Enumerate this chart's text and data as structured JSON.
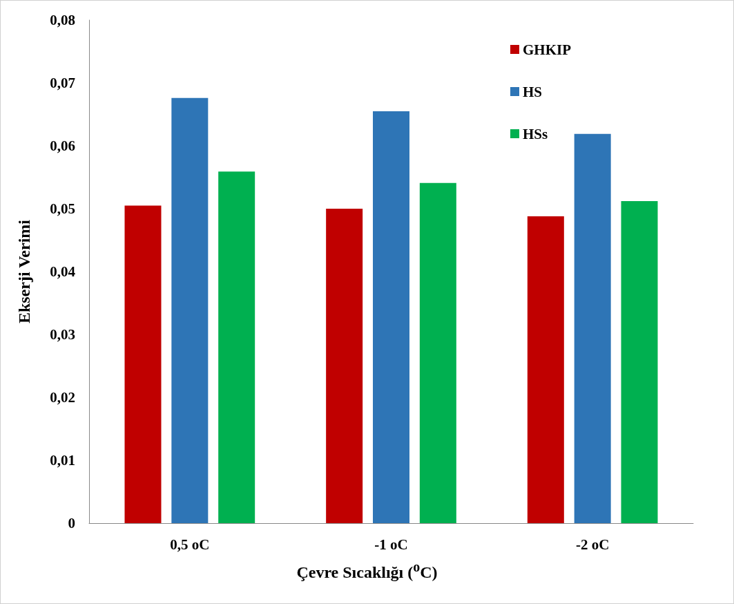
{
  "chart_data": {
    "type": "bar",
    "xlabel": "Çevre Sıcaklığı ($^{o}$C)",
    "ylabel": "Ekserji Verimi",
    "categories": [
      "0,5 oC",
      "-1 oC",
      "-2 oC"
    ],
    "series": [
      {
        "name": "GHKIP",
        "color": "#c00000",
        "values": [
          0.0505,
          0.05,
          0.0488
        ]
      },
      {
        "name": "HS",
        "color": "#2e75b6",
        "values": [
          0.0676,
          0.0655,
          0.0619
        ]
      },
      {
        "name": "HSs",
        "color": "#00b050",
        "values": [
          0.0559,
          0.0541,
          0.0512
        ]
      }
    ],
    "ylim": [
      0,
      0.08
    ],
    "yticks": [
      0,
      {
        "value": 0.01,
        "label": "0,01"
      },
      {
        "value": 0.02,
        "label": "0,02"
      },
      {
        "value": 0.03,
        "label": "0,03"
      },
      {
        "value": 0.04,
        "label": "0,04"
      },
      {
        "value": 0.05,
        "label": "0,05"
      },
      {
        "value": 0.06,
        "label": "0,06"
      },
      {
        "value": 0.07,
        "label": "0,07"
      },
      {
        "value": 0.08,
        "label": "0,08"
      }
    ],
    "grid": false,
    "legend": "top right"
  }
}
